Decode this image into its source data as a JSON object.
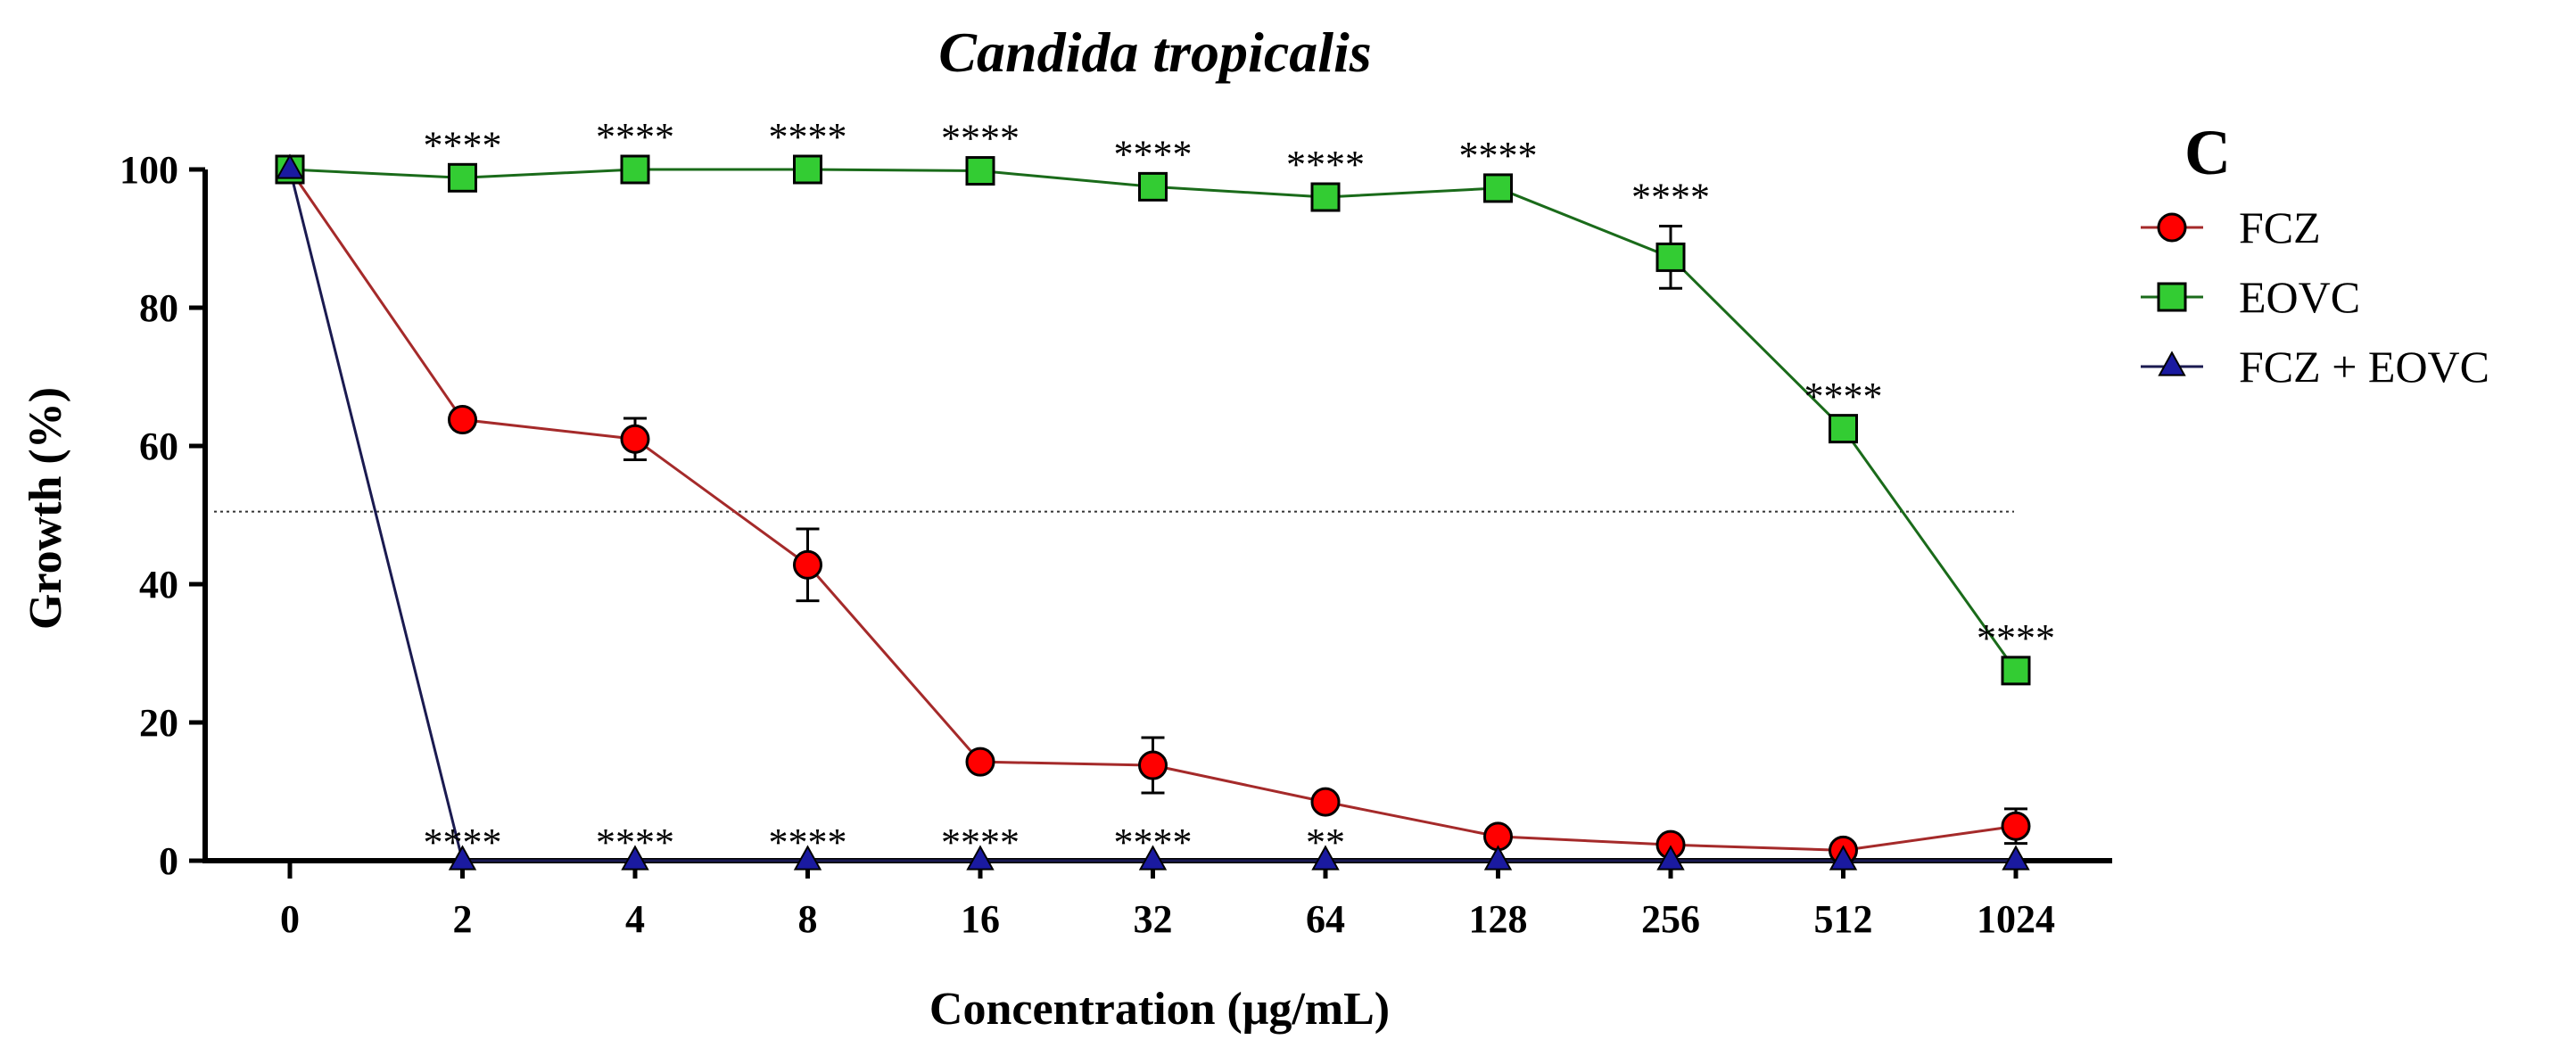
{
  "chart_data": {
    "type": "line",
    "title": "Candida tropicalis",
    "panel_label": "C",
    "xlabel": "Concentration (μg/mL)",
    "ylabel": "Growth (%)",
    "categories": [
      "0",
      "2",
      "4",
      "8",
      "16",
      "32",
      "64",
      "128",
      "256",
      "512",
      "1024"
    ],
    "ylim": [
      0,
      100
    ],
    "yticks": [
      0,
      20,
      40,
      60,
      80,
      100
    ],
    "reference_line": 50.5,
    "series": [
      {
        "name": "FCZ",
        "marker": "circle",
        "color": "#ff0000",
        "line_color": "#a52a2a",
        "values": [
          100,
          63.8,
          61,
          42.8,
          14.3,
          13.8,
          8.5,
          3.5,
          2.3,
          1.5,
          5
        ],
        "errors": [
          0,
          0.5,
          3,
          5.2,
          0.5,
          4,
          0.5,
          0.5,
          0.5,
          0.5,
          2.5
        ],
        "significance": [
          "",
          "",
          "",
          "",
          "",
          "",
          "",
          "",
          "",
          "",
          ""
        ]
      },
      {
        "name": "EOVC",
        "marker": "square",
        "color": "#33cc33",
        "line_color": "#1a6b1a",
        "values": [
          100,
          98.8,
          100,
          100,
          99.8,
          97.5,
          96,
          97.3,
          87.3,
          62.5,
          27.5
        ],
        "errors": [
          0,
          0.5,
          0.5,
          0.5,
          0.5,
          0.5,
          0.5,
          0.5,
          4.5,
          0.5,
          0.5
        ],
        "significance": [
          "",
          "****",
          "****",
          "****",
          "****",
          "****",
          "****",
          "****",
          "****",
          "****",
          "****"
        ]
      },
      {
        "name": "FCZ + EOVC",
        "marker": "triangle",
        "color": "#1a1aa0",
        "line_color": "#1a1a50",
        "values": [
          100,
          0,
          0,
          0,
          0,
          0,
          0,
          0,
          0,
          0,
          0
        ],
        "errors": [
          0,
          0,
          0,
          0,
          0,
          0,
          0,
          0,
          0,
          0,
          0
        ],
        "significance": [
          "",
          "****",
          "****",
          "****",
          "****",
          "****",
          "**",
          "",
          "",
          "",
          ""
        ]
      }
    ]
  }
}
